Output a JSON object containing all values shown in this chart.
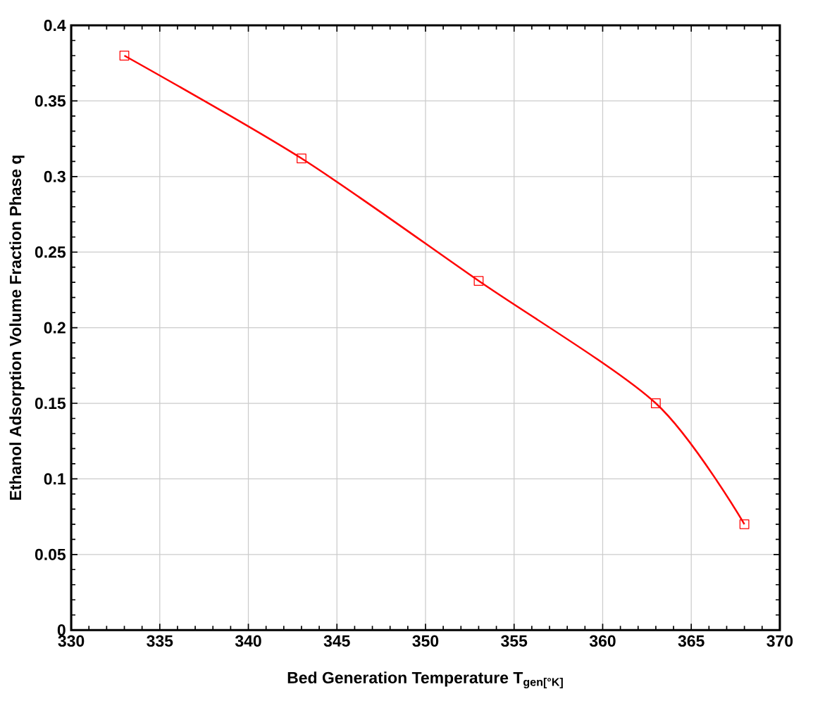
{
  "chart_data": {
    "type": "line",
    "xlabel": "Bed Generation Temperature T$_{gen[°K]}$",
    "ylabel": "Ethanol Adsorption Volume Fraction Phase q",
    "x": [
      333,
      343,
      353,
      363,
      368
    ],
    "series": [
      {
        "color": "#ff0000",
        "values": [
          0.38,
          0.312,
          0.231,
          0.15,
          0.07
        ]
      }
    ],
    "xlim": [
      330,
      370
    ],
    "xticks": [
      330,
      335,
      340,
      345,
      350,
      355,
      360,
      365,
      370
    ],
    "ylim": [
      0,
      0.4
    ],
    "yticks": [
      0,
      0.05,
      0.1,
      0.15,
      0.2,
      0.25,
      0.3,
      0.35,
      0.4
    ],
    "grid": true,
    "marker": "square",
    "line_style": "solid"
  }
}
